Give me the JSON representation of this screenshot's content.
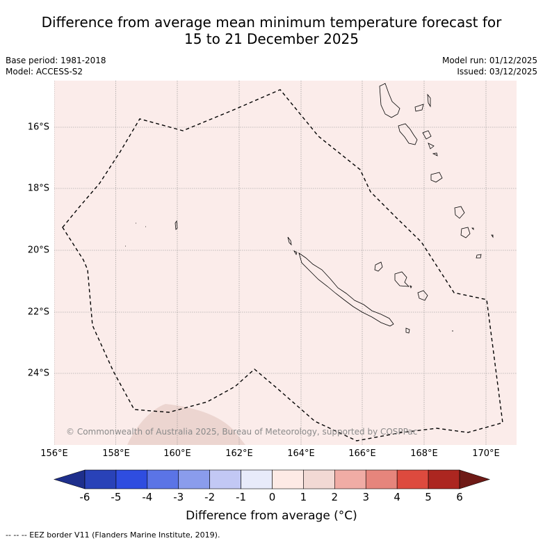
{
  "title": {
    "line1": "Difference from average mean minimum temperature forecast for",
    "line2": "15 to 21 December 2025"
  },
  "meta": {
    "base_period": "Base period: 1981-2018",
    "model": "Model: ACCESS-S2",
    "model_run": "Model run: 01/12/2025",
    "issued": "Issued: 03/12/2025"
  },
  "map": {
    "extent": {
      "lon_min": 156,
      "lon_max": 171,
      "lat_min": -26.3,
      "lat_max": -14.5
    },
    "background_anomaly_color": "#fbecea",
    "patch_anomaly_color": "#ecd5d0",
    "lat_ticks": [
      "16°S",
      "18°S",
      "20°S",
      "22°S",
      "24°S"
    ],
    "lon_ticks": [
      "156°E",
      "158°E",
      "160°E",
      "162°E",
      "164°E",
      "166°E",
      "168°E",
      "170°E"
    ],
    "copyright": "© Commonwealth of Australia 2025, Bureau of Meteorology, supported by COSPPac"
  },
  "colorbar": {
    "ticks": [
      "-6",
      "-5",
      "-4",
      "-3",
      "-2",
      "-1",
      "0",
      "1",
      "2",
      "3",
      "4",
      "5",
      "6"
    ],
    "colors": [
      "#1e2f8c",
      "#2942b8",
      "#2f4de0",
      "#5b74e6",
      "#8a9cec",
      "#c2c8f4",
      "#e8ebfa",
      "#fdeae5",
      "#f2d9d4",
      "#f0aca5",
      "#e6857c",
      "#dd4a3e",
      "#ac2620",
      "#6e1a16"
    ],
    "label": "Difference from average (°C)"
  },
  "footnote": "-- -- -- EEZ border V11 (Flanders Marine Institute, 2019)."
}
